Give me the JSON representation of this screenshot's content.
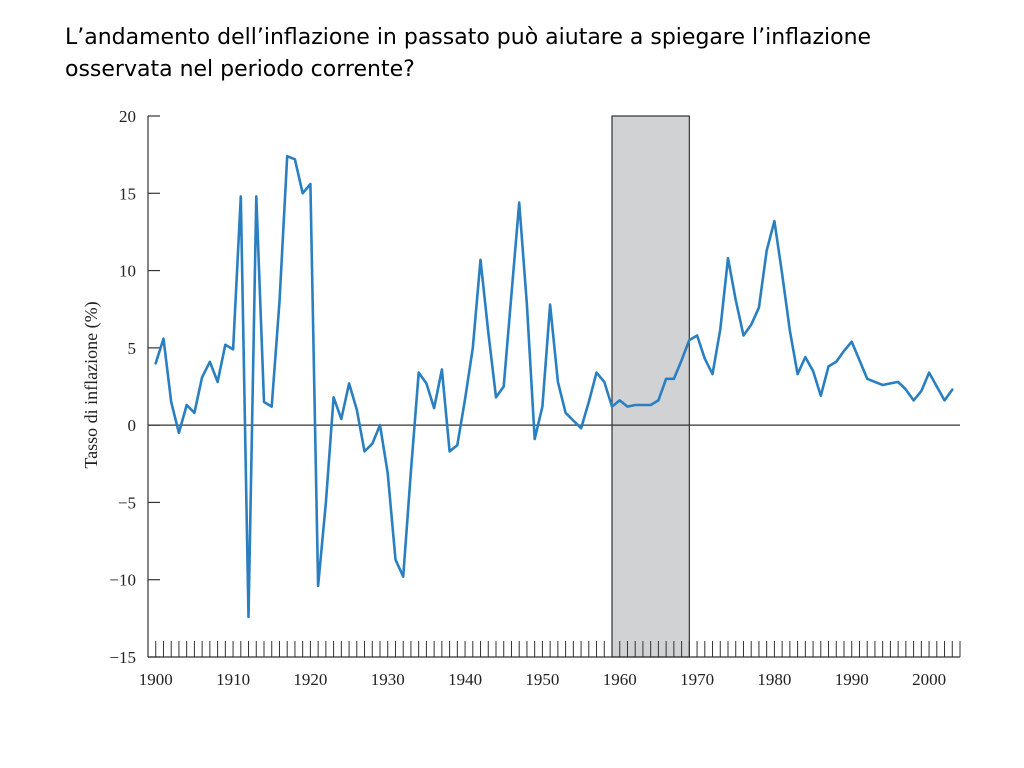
{
  "slide": {
    "title": "L’andamento dell’inflazione in passato può aiutare a spiegare l’inflazione osservata nel periodo corrente?"
  },
  "chart_data": {
    "type": "line",
    "title": "",
    "xlabel": "",
    "ylabel": "Tasso di inflazione (%)",
    "xlim": [
      1899,
      2004
    ],
    "ylim": [
      -15,
      20
    ],
    "x_ticks": [
      1900,
      1910,
      1920,
      1930,
      1940,
      1950,
      1960,
      1970,
      1980,
      1990,
      2000
    ],
    "y_ticks": [
      20,
      15,
      10,
      5,
      0,
      -5,
      -10,
      -15
    ],
    "y_tick_labels": [
      "20",
      "15",
      "10",
      "5",
      "0",
      "−5",
      "−10",
      "−15"
    ],
    "shaded_range": [
      1959,
      1969
    ],
    "reference_line_y": 0,
    "line_color": "#2a7fc0",
    "shade_color": "#d1d2d4",
    "grid": false,
    "series": [
      {
        "x": [
          1900,
          1901,
          1902,
          1903,
          1904,
          1905,
          1906,
          1907,
          1908,
          1909,
          1910,
          1911,
          1912,
          1913,
          1914,
          1915,
          1916,
          1917,
          1918,
          1919,
          1920,
          1921,
          1922,
          1923,
          1924,
          1925,
          1926,
          1927,
          1928,
          1929,
          1930,
          1931,
          1932,
          1933,
          1934,
          1935,
          1936,
          1937,
          1938,
          1939,
          1940,
          1941,
          1942,
          1943,
          1944,
          1945,
          1946,
          1947,
          1948,
          1949,
          1950,
          1951,
          1952,
          1953,
          1954,
          1955,
          1956,
          1957,
          1958,
          1959,
          1960,
          1961,
          1962,
          1963,
          1964,
          1965,
          1966,
          1967,
          1968,
          1969,
          1970,
          1971,
          1972,
          1973,
          1974,
          1975,
          1976,
          1977,
          1978,
          1979,
          1980,
          1981,
          1982,
          1983,
          1984,
          1985,
          1986,
          1987,
          1988,
          1989,
          1990,
          1991,
          1992,
          1993,
          1994,
          1995,
          1996,
          1997,
          1998,
          1999,
          2000,
          2001,
          2002,
          2003
        ],
        "y": [
          4.0,
          5.6,
          1.5,
          -0.5,
          1.3,
          0.8,
          3.1,
          4.1,
          2.8,
          5.2,
          4.9,
          14.8,
          -12.4,
          14.8,
          1.5,
          1.2,
          8.0,
          17.4,
          17.2,
          15.0,
          15.6,
          -10.4,
          -5.0,
          1.8,
          0.4,
          2.7,
          1.0,
          -1.7,
          -1.2,
          0.0,
          -3.1,
          -8.7,
          -9.8,
          -3.0,
          3.4,
          2.7,
          1.1,
          3.6,
          -1.7,
          -1.3,
          1.7,
          5.0,
          10.7,
          6.0,
          1.8,
          2.5,
          8.5,
          14.4,
          7.8,
          -0.9,
          1.2,
          7.8,
          2.8,
          0.8,
          0.3,
          -0.2,
          1.5,
          3.4,
          2.8,
          1.2,
          1.6,
          1.2,
          1.3,
          1.3,
          1.3,
          1.6,
          3.0,
          3.0,
          4.2,
          5.5,
          5.8,
          4.3,
          3.3,
          6.2,
          10.8,
          8.1,
          5.8,
          6.5,
          7.6,
          11.3,
          13.2,
          9.8,
          6.1,
          3.3,
          4.4,
          3.5,
          1.9,
          3.8,
          4.1,
          4.8,
          5.4,
          4.2,
          3.0,
          2.8,
          2.6,
          2.7,
          2.8,
          2.3,
          1.6,
          2.2,
          3.4,
          2.5,
          1.6,
          2.3
        ]
      }
    ]
  }
}
